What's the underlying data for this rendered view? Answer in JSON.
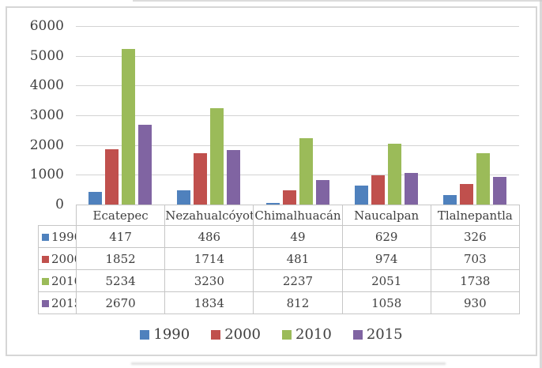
{
  "frame": {
    "background": "#ffffff",
    "border_color": "#d6d6d6"
  },
  "chart_data": {
    "type": "bar",
    "title": "",
    "xlabel": "",
    "ylabel": "",
    "categories": [
      "Ecatepec",
      "Nezahualcóyotl",
      "Chimalhuacán",
      "Naucalpan",
      "Tlalnepantla"
    ],
    "series": [
      {
        "name": "1990",
        "color": "#4f81bd",
        "values": [
          417,
          486,
          49,
          629,
          326
        ]
      },
      {
        "name": "2000",
        "color": "#c0504d",
        "values": [
          1852,
          1714,
          481,
          974,
          703
        ]
      },
      {
        "name": "2010",
        "color": "#9bbb59",
        "values": [
          5234,
          3230,
          2237,
          2051,
          1738
        ]
      },
      {
        "name": "2015",
        "color": "#8064a2",
        "values": [
          2670,
          1834,
          812,
          1058,
          930
        ]
      }
    ],
    "ylim": [
      0,
      6000
    ],
    "yticks": [
      0,
      1000,
      2000,
      3000,
      4000,
      5000,
      6000
    ],
    "grid": true,
    "legend_position": "bottom",
    "data_table_shown": true
  },
  "style": {
    "text_color": "#3f3f3f",
    "gridline_color": "#d3d3d3",
    "table_border_color": "#c6c6c6"
  }
}
